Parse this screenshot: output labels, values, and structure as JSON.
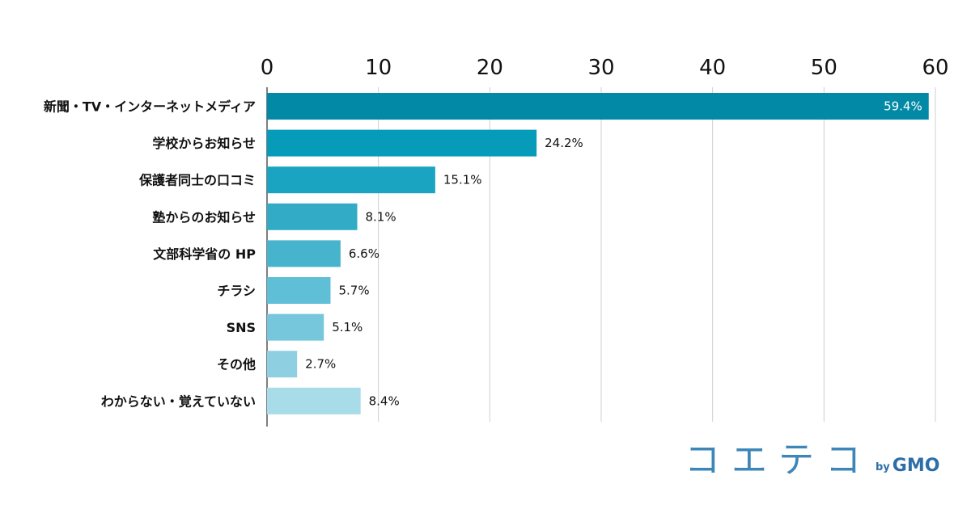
{
  "chart_data": {
    "type": "bar",
    "orientation": "horizontal",
    "categories": [
      "新聞・TV・インターネットメディア",
      "学校からお知らせ",
      "保護者同士の口コミ",
      "塾からのお知らせ",
      "文部科学省の HP",
      "チラシ",
      "SNS",
      "その他",
      "わからない・覚えていない"
    ],
    "values": [
      59.4,
      24.2,
      15.1,
      8.1,
      6.6,
      5.7,
      5.1,
      2.7,
      8.4
    ],
    "value_labels": [
      "59.4%",
      "24.2%",
      "15.1%",
      "8.1%",
      "6.6%",
      "5.7%",
      "5.1%",
      "2.7%",
      "8.4%"
    ],
    "xlim": [
      0,
      60
    ],
    "xticks": [
      0,
      10,
      20,
      30,
      40,
      50,
      60
    ],
    "x_axis_position": "top",
    "grid": true,
    "bar_colors": [
      "#0289a6",
      "#069bb9",
      "#1aa4c2",
      "#32abc7",
      "#47b4cd",
      "#5fbfd6",
      "#76c7dc",
      "#8ed0e2",
      "#a8dce8"
    ],
    "title": "",
    "xlabel": "",
    "ylabel": ""
  },
  "branding": {
    "logo_text": "コエテコ",
    "by_text": "by",
    "company_text": "GMO"
  }
}
